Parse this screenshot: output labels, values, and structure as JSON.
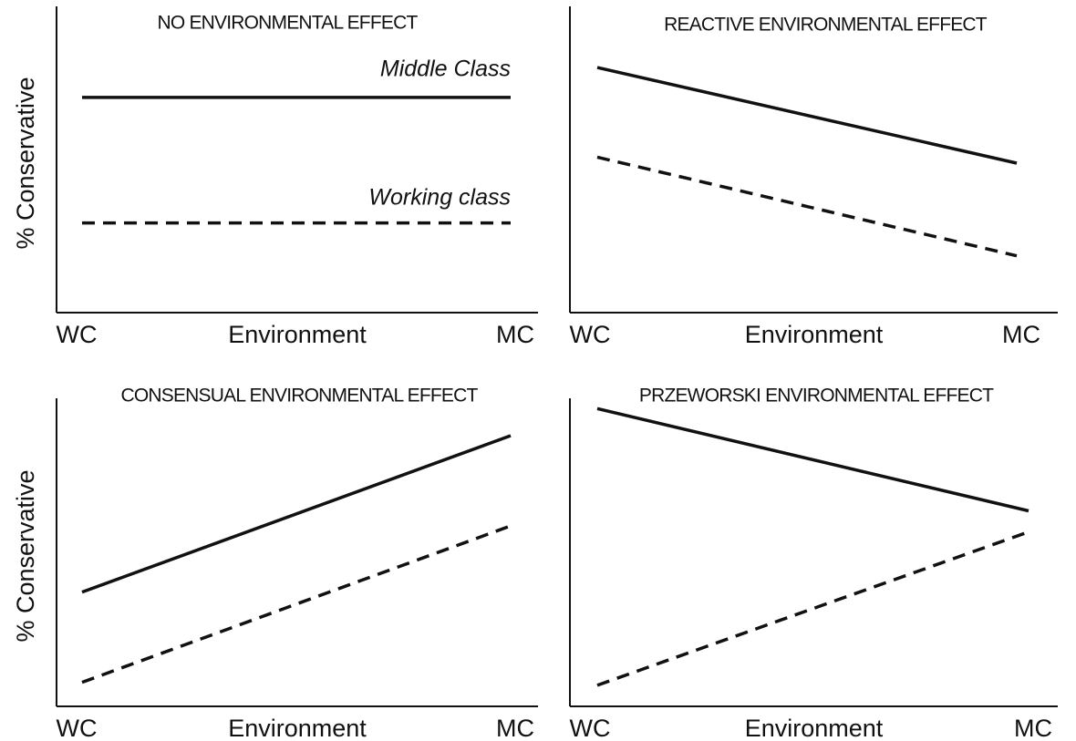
{
  "chart_data": [
    {
      "type": "line",
      "title": "NO ENVIRONMENTAL EFFECT",
      "categories": [
        "WC",
        "MC"
      ],
      "xlabel": "Environment",
      "ylabel": "% Conservative",
      "ylim": [
        0,
        100
      ],
      "series": [
        {
          "name": "Middle Class",
          "color": "#111111",
          "style": "solid",
          "values": [
            72,
            72
          ]
        },
        {
          "name": "Working class",
          "color": "#111111",
          "style": "dashed",
          "values": [
            30,
            30
          ]
        }
      ]
    },
    {
      "type": "line",
      "title": "REACTIVE ENVIRONMENTAL EFFECT",
      "categories": [
        "WC",
        "MC"
      ],
      "xlabel": "Environment",
      "ylim": [
        0,
        100
      ],
      "series": [
        {
          "color": "#111111",
          "style": "solid",
          "values": [
            82,
            50
          ]
        },
        {
          "color": "#111111",
          "style": "dashed",
          "values": [
            52,
            19
          ]
        }
      ]
    },
    {
      "type": "line",
      "title": "CONSENSUAL ENVIRONMENTAL EFFECT",
      "categories": [
        "WC",
        "MC"
      ],
      "xlabel": "Environment",
      "ylabel": "% Conservative",
      "ylim": [
        0,
        100
      ],
      "series": [
        {
          "color": "#111111",
          "style": "solid",
          "values": [
            38,
            90
          ]
        },
        {
          "color": "#111111",
          "style": "dashed",
          "values": [
            8,
            60
          ]
        }
      ]
    },
    {
      "type": "line",
      "title": "PRZEWORSKI ENVIRONMENTAL EFFECT",
      "categories": [
        "WC",
        "MC"
      ],
      "xlabel": "Environment",
      "ylim": [
        0,
        100
      ],
      "series": [
        {
          "color": "#111111",
          "style": "solid",
          "values": [
            99,
            65
          ]
        },
        {
          "color": "#111111",
          "style": "dashed",
          "values": [
            7,
            58
          ]
        }
      ]
    }
  ]
}
